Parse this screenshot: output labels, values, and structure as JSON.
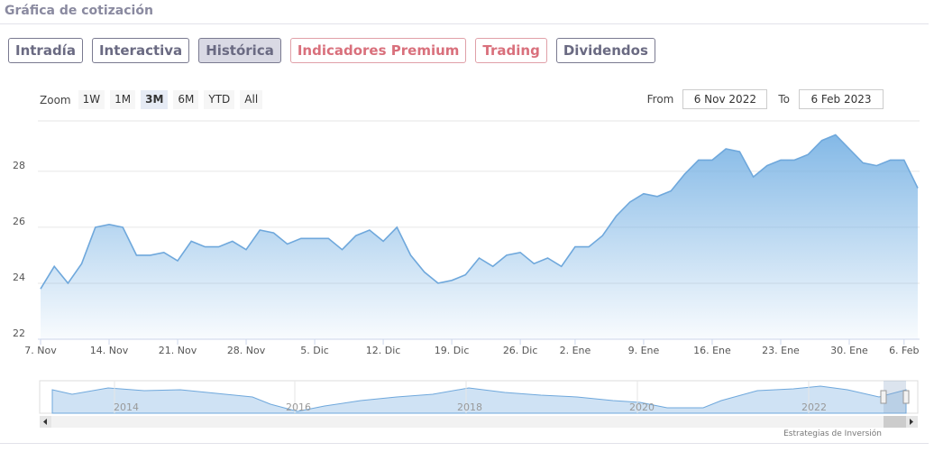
{
  "header": {
    "title": "Gráfica de cotización"
  },
  "tabs": [
    {
      "label": "Intradía",
      "style": "default"
    },
    {
      "label": "Interactiva",
      "style": "default"
    },
    {
      "label": "Histórica",
      "style": "active"
    },
    {
      "label": "Indicadores Premium",
      "style": "accent"
    },
    {
      "label": "Trading",
      "style": "accent"
    },
    {
      "label": "Dividendos",
      "style": "default"
    }
  ],
  "zoom": {
    "label": "Zoom",
    "buttons": [
      "1W",
      "1M",
      "3M",
      "6M",
      "YTD",
      "All"
    ],
    "active": 2
  },
  "range": {
    "from_label": "From",
    "from": "6 Nov 2022",
    "to_label": "To",
    "to": "6 Feb 2023"
  },
  "navigator": {
    "years": [
      "2014",
      "2016",
      "2018",
      "2020",
      "2022"
    ]
  },
  "credit": "Estrategias de Inversión",
  "chart_data": {
    "type": "area",
    "categories": [
      "7. Nov",
      null,
      null,
      null,
      null,
      "14. Nov",
      null,
      null,
      null,
      null,
      "21. Nov",
      null,
      null,
      null,
      null,
      "28. Nov",
      null,
      null,
      null,
      null,
      "5. Dic",
      null,
      null,
      null,
      null,
      "12. Dic",
      null,
      null,
      null,
      null,
      "19. Dic",
      null,
      null,
      null,
      null,
      "26. Dic",
      null,
      null,
      null,
      "2. Ene",
      null,
      null,
      null,
      null,
      "9. Ene",
      null,
      null,
      null,
      null,
      "16. Ene",
      null,
      null,
      null,
      null,
      "23. Ene",
      null,
      null,
      null,
      null,
      "30. Ene",
      null,
      null,
      null,
      "6. Feb",
      null
    ],
    "values": [
      23.8,
      24.6,
      24.0,
      24.7,
      26.0,
      26.1,
      26.0,
      25.0,
      25.0,
      25.1,
      24.8,
      25.5,
      25.3,
      25.3,
      25.5,
      25.2,
      25.9,
      25.8,
      25.4,
      25.6,
      25.6,
      25.6,
      25.2,
      25.7,
      25.9,
      25.5,
      26.0,
      25.0,
      24.4,
      24.0,
      24.1,
      24.3,
      24.9,
      24.6,
      25.0,
      25.1,
      24.7,
      24.9,
      24.6,
      25.3,
      25.3,
      25.7,
      26.4,
      26.9,
      27.2,
      27.1,
      27.3,
      27.9,
      28.4,
      28.4,
      28.8,
      28.7,
      27.8,
      28.2,
      28.4,
      28.4,
      28.6,
      29.1,
      29.3,
      28.8,
      28.3,
      28.2,
      28.4,
      28.4,
      27.4
    ],
    "color": "#6fa8dc",
    "ylim": [
      22,
      29.8
    ],
    "yticks": [
      22,
      24,
      26,
      28
    ],
    "grid": true
  }
}
